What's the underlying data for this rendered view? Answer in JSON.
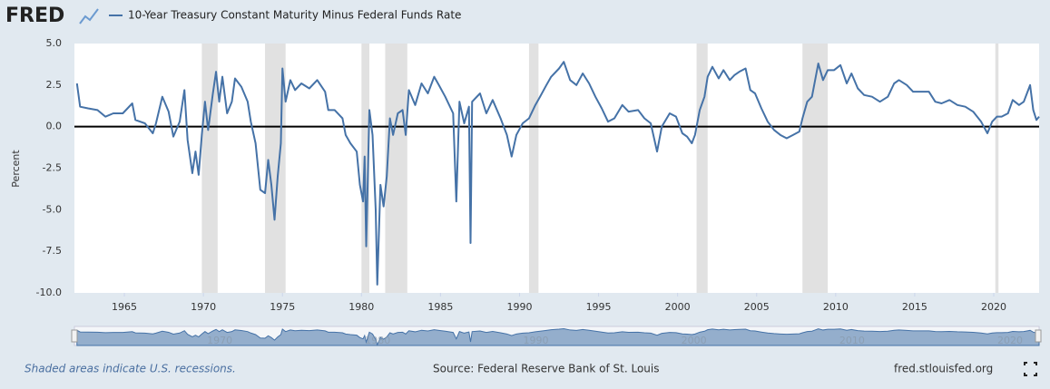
{
  "logo": "FRED",
  "footer": {
    "note": "Shaded areas indicate U.S. recessions.",
    "source": "Source: Federal Reserve Bank of St. Louis",
    "site": "fred.stlouisfed.org"
  },
  "chart_data": {
    "type": "line",
    "y_label": "Percent",
    "xlim": [
      1961.84,
      2022.87
    ],
    "xticks": [
      1965,
      1970,
      1975,
      1980,
      1985,
      1990,
      1995,
      2000,
      2005,
      2010,
      2015,
      2020
    ],
    "ylim": [
      -10,
      5
    ],
    "yticks": [
      {
        "value": 5,
        "label": "5.0"
      },
      2.5,
      {
        "value": 0,
        "label": "0.0"
      },
      -2.5,
      {
        "value": -5,
        "label": "-5.0"
      },
      -7.5,
      {
        "value": -10,
        "label": "-10.0"
      }
    ],
    "recessions": [
      [
        1969.9,
        1970.9
      ],
      [
        1973.9,
        1975.2
      ],
      [
        1980.0,
        1980.5
      ],
      [
        1981.5,
        1982.9
      ],
      [
        1990.6,
        1991.2
      ],
      [
        2001.2,
        2001.9
      ],
      [
        2007.9,
        2009.5
      ],
      [
        2020.1,
        2020.3
      ]
    ],
    "recession_color": "#e1e1e1",
    "navigator_xticks": [
      1970,
      1980,
      1990,
      2000,
      2010,
      2020
    ],
    "x": [
      1962.0,
      1962.2,
      1962.7,
      1963.3,
      1963.8,
      1964.3,
      1964.9,
      1965.5,
      1965.7,
      1966.3,
      1966.8,
      1967.0,
      1967.4,
      1967.8,
      1968.1,
      1968.5,
      1968.8,
      1969.0,
      1969.3,
      1969.5,
      1969.7,
      1969.9,
      1970.1,
      1970.3,
      1970.6,
      1970.8,
      1971.0,
      1971.2,
      1971.5,
      1971.8,
      1972.0,
      1972.4,
      1972.8,
      1973.0,
      1973.3,
      1973.6,
      1973.9,
      1974.1,
      1974.3,
      1974.5,
      1974.7,
      1974.9,
      1975.0,
      1975.2,
      1975.5,
      1975.8,
      1976.2,
      1976.7,
      1977.2,
      1977.7,
      1977.9,
      1978.3,
      1978.8,
      1979.0,
      1979.3,
      1979.7,
      1979.9,
      1980.1,
      1980.2,
      1980.3,
      1980.5,
      1980.7,
      1980.9,
      1981.0,
      1981.2,
      1981.4,
      1981.6,
      1981.8,
      1982.0,
      1982.3,
      1982.6,
      1982.8,
      1983.0,
      1983.4,
      1983.8,
      1984.2,
      1984.6,
      1984.9,
      1985.3,
      1985.8,
      1986.0,
      1986.2,
      1986.5,
      1986.8,
      1986.9,
      1987.0,
      1987.5,
      1987.9,
      1988.3,
      1988.8,
      1989.2,
      1989.5,
      1989.8,
      1990.2,
      1990.6,
      1991.0,
      1991.3,
      1991.7,
      1992.0,
      1992.5,
      1992.8,
      1993.2,
      1993.6,
      1994.0,
      1994.4,
      1994.8,
      1995.2,
      1995.6,
      1996.0,
      1996.5,
      1996.9,
      1997.5,
      1997.9,
      1998.3,
      1998.7,
      1999.0,
      1999.5,
      1999.9,
      2000.3,
      2000.6,
      2000.9,
      2001.1,
      2001.4,
      2001.7,
      2001.9,
      2002.2,
      2002.6,
      2002.9,
      2003.3,
      2003.6,
      2003.9,
      2004.3,
      2004.6,
      2004.9,
      2005.3,
      2005.7,
      2006.1,
      2006.5,
      2006.9,
      2007.3,
      2007.7,
      2007.9,
      2008.2,
      2008.5,
      2008.7,
      2008.9,
      2009.2,
      2009.5,
      2009.9,
      2010.3,
      2010.7,
      2011.0,
      2011.4,
      2011.8,
      2012.3,
      2012.8,
      2013.3,
      2013.7,
      2014.0,
      2014.5,
      2014.9,
      2015.4,
      2015.9,
      2016.3,
      2016.7,
      2017.2,
      2017.7,
      2018.2,
      2018.7,
      2019.2,
      2019.6,
      2019.9,
      2020.2,
      2020.5,
      2020.9,
      2021.2,
      2021.6,
      2021.9,
      2022.1,
      2022.3,
      2022.5,
      2022.7,
      2022.87
    ],
    "series": [
      {
        "name": "10-Year Treasury Constant Maturity Minus Federal Funds Rate",
        "color": "#4572a7",
        "values": [
          2.6,
          1.2,
          1.1,
          1.0,
          0.6,
          0.8,
          0.8,
          1.4,
          0.4,
          0.2,
          -0.4,
          0.2,
          1.8,
          0.9,
          -0.6,
          0.3,
          2.2,
          -0.8,
          -2.8,
          -1.5,
          -2.9,
          -0.5,
          1.5,
          -0.2,
          2.0,
          3.3,
          1.5,
          3.0,
          0.8,
          1.5,
          2.9,
          2.4,
          1.5,
          0.3,
          -1.0,
          -3.8,
          -4.0,
          -2.0,
          -3.5,
          -5.6,
          -3.0,
          -1.0,
          3.5,
          1.5,
          2.8,
          2.2,
          2.6,
          2.3,
          2.8,
          2.1,
          1.0,
          1.0,
          0.5,
          -0.5,
          -1.0,
          -1.5,
          -3.5,
          -4.5,
          -1.8,
          -7.2,
          1.0,
          -0.5,
          -5.0,
          -9.5,
          -3.5,
          -4.8,
          -3.0,
          0.5,
          -0.5,
          0.8,
          1.0,
          -0.5,
          2.2,
          1.3,
          2.6,
          2.0,
          3.0,
          2.5,
          1.8,
          0.8,
          -4.5,
          1.5,
          0.2,
          1.2,
          -7.0,
          1.5,
          2.0,
          0.8,
          1.6,
          0.5,
          -0.5,
          -1.8,
          -0.5,
          0.2,
          0.5,
          1.3,
          1.8,
          2.5,
          3.0,
          3.5,
          3.9,
          2.8,
          2.5,
          3.2,
          2.6,
          1.8,
          1.1,
          0.3,
          0.5,
          1.3,
          0.9,
          1.0,
          0.5,
          0.2,
          -1.5,
          0.0,
          0.8,
          0.6,
          -0.4,
          -0.6,
          -1.0,
          -0.5,
          1.0,
          1.8,
          3.0,
          3.6,
          2.9,
          3.4,
          2.8,
          3.1,
          3.3,
          3.5,
          2.2,
          2.0,
          1.1,
          0.3,
          -0.2,
          -0.5,
          -0.7,
          -0.5,
          -0.3,
          0.5,
          1.5,
          1.8,
          2.8,
          3.8,
          2.8,
          3.4,
          3.4,
          3.7,
          2.6,
          3.2,
          2.3,
          1.9,
          1.8,
          1.5,
          1.8,
          2.6,
          2.8,
          2.5,
          2.1,
          2.1,
          2.1,
          1.5,
          1.4,
          1.6,
          1.3,
          1.2,
          0.9,
          0.3,
          -0.4,
          0.3,
          0.6,
          0.6,
          0.8,
          1.6,
          1.3,
          1.5,
          2.0,
          2.5,
          1.0,
          0.4,
          0.6
        ]
      }
    ]
  }
}
